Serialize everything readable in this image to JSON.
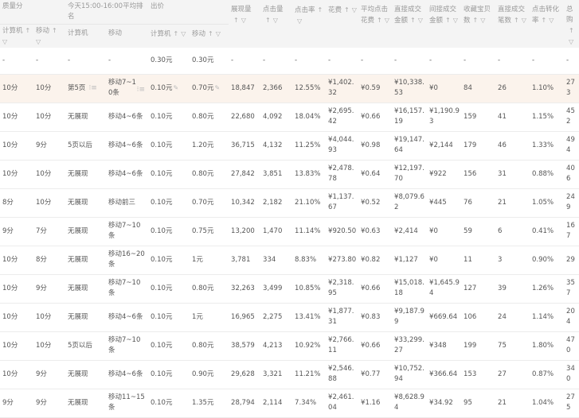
{
  "groups": {
    "quality": "质量分",
    "rank": "今天15:00-16:00平均排名",
    "bid": "出价"
  },
  "sub_headers": {
    "q_pc": "计算机",
    "q_mobile": "移动",
    "r_pc": "计算机",
    "r_mobile": "移动",
    "b_pc": "计算机",
    "b_mobile": "移动"
  },
  "metric_headers": [
    "展现量",
    "点击量",
    "点击率",
    "花费",
    "平均点击花费",
    "直接成交金额",
    "间接成交金额",
    "收藏宝贝数",
    "直接成交笔数",
    "点击转化率",
    "总购"
  ],
  "icons": {
    "sort": "sort-up-arrow-icon",
    "filter": "filter-icon",
    "edit": "pencil-icon",
    "rank-list": "list-icon"
  },
  "colors": {
    "header_bg": "#f4f4f4",
    "highlight_row": "#fbf3ec",
    "text": "#555555",
    "header_text": "#999999"
  },
  "summary_row": [
    "-",
    "-",
    "-",
    "-",
    "0.30元",
    "0.30元",
    "-",
    "-",
    "-",
    "-",
    "-",
    "-",
    "-",
    "-",
    "-",
    "-",
    "-"
  ],
  "rows": [
    [
      "10分",
      "10分",
      "第5页",
      "移动7~10条",
      "0.10元",
      "0.70元",
      "18,847",
      "2,366",
      "12.55%",
      "¥1,402.32",
      "¥0.59",
      "¥10,338.53",
      "¥0",
      "84",
      "26",
      "1.10%",
      "273"
    ],
    [
      "10分",
      "10分",
      "无展现",
      "移动4~6条",
      "0.10元",
      "0.80元",
      "22,680",
      "4,092",
      "18.04%",
      "¥2,695.42",
      "¥0.66",
      "¥16,157.19",
      "¥1,190.93",
      "159",
      "41",
      "1.15%",
      "452"
    ],
    [
      "10分",
      "9分",
      "5页以后",
      "移动4~6条",
      "0.10元",
      "1.20元",
      "36,715",
      "4,132",
      "11.25%",
      "¥4,044.93",
      "¥0.98",
      "¥19,147.64",
      "¥2,144",
      "179",
      "46",
      "1.33%",
      "494"
    ],
    [
      "10分",
      "10分",
      "无展现",
      "移动4~6条",
      "0.10元",
      "0.80元",
      "27,842",
      "3,851",
      "13.83%",
      "¥2,478.78",
      "¥0.64",
      "¥12,197.70",
      "¥922",
      "156",
      "31",
      "0.88%",
      "406"
    ],
    [
      "8分",
      "10分",
      "无展现",
      "移动前三",
      "0.10元",
      "0.70元",
      "10,342",
      "2,182",
      "21.10%",
      "¥1,137.67",
      "¥0.52",
      "¥8,079.62",
      "¥445",
      "76",
      "21",
      "1.05%",
      "249"
    ],
    [
      "9分",
      "7分",
      "无展现",
      "移动7~10条",
      "0.10元",
      "0.75元",
      "13,200",
      "1,470",
      "11.14%",
      "¥920.50",
      "¥0.63",
      "¥2,414",
      "¥0",
      "59",
      "6",
      "0.41%",
      "167"
    ],
    [
      "10分",
      "8分",
      "无展现",
      "移动16~20条",
      "0.10元",
      "1元",
      "3,781",
      "334",
      "8.83%",
      "¥273.80",
      "¥0.82",
      "¥1,127",
      "¥0",
      "11",
      "3",
      "0.90%",
      "29"
    ],
    [
      "10分",
      "9分",
      "无展现",
      "移动7~10条",
      "0.10元",
      "0.80元",
      "32,263",
      "3,499",
      "10.85%",
      "¥2,318.95",
      "¥0.66",
      "¥15,018.18",
      "¥1,645.94",
      "127",
      "39",
      "1.26%",
      "357"
    ],
    [
      "10分",
      "10分",
      "无展现",
      "移动4~6条",
      "0.10元",
      "1元",
      "16,965",
      "2,275",
      "13.41%",
      "¥1,877.31",
      "¥0.83",
      "¥9,187.99",
      "¥669.64",
      "106",
      "24",
      "1.14%",
      "204"
    ],
    [
      "10分",
      "10分",
      "5页以后",
      "移动7~10条",
      "0.10元",
      "0.80元",
      "38,579",
      "4,213",
      "10.92%",
      "¥2,766.11",
      "¥0.66",
      "¥33,299.27",
      "¥348",
      "199",
      "75",
      "1.80%",
      "470"
    ],
    [
      "10分",
      "9分",
      "无展现",
      "移动4~6条",
      "0.10元",
      "0.90元",
      "29,628",
      "3,321",
      "11.21%",
      "¥2,546.88",
      "¥0.77",
      "¥10,752.94",
      "¥366.64",
      "153",
      "27",
      "0.87%",
      "340"
    ],
    [
      "9分",
      "9分",
      "无展现",
      "移动11~15条",
      "0.10元",
      "1.35元",
      "28,794",
      "2,114",
      "7.34%",
      "¥2,461.04",
      "¥1.16",
      "¥8,628.94",
      "¥34.92",
      "95",
      "21",
      "1.04%",
      "275"
    ]
  ]
}
